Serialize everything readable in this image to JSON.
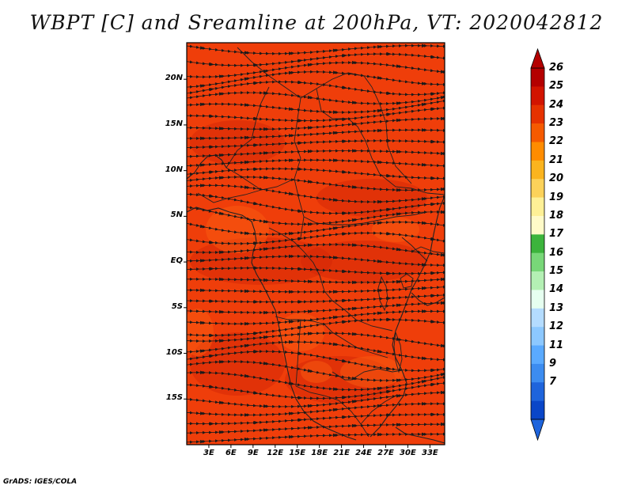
{
  "title": "WBPT [C] and Sreamline at 200hPa, VT: 2020042812",
  "footer": "GrADS: IGES/COLA",
  "map": {
    "lon_range": [
      0,
      35
    ],
    "lat_range": [
      -20,
      24
    ],
    "lat_ticks": [
      {
        "value": 20,
        "label": "20N"
      },
      {
        "value": 15,
        "label": "15N"
      },
      {
        "value": 10,
        "label": "10N"
      },
      {
        "value": 5,
        "label": "5N"
      },
      {
        "value": 0,
        "label": "EQ"
      },
      {
        "value": -5,
        "label": "5S"
      },
      {
        "value": -10,
        "label": "10S"
      },
      {
        "value": -15,
        "label": "15S"
      }
    ],
    "lon_ticks": [
      {
        "value": 3,
        "label": "3E"
      },
      {
        "value": 6,
        "label": "6E"
      },
      {
        "value": 9,
        "label": "9E"
      },
      {
        "value": 12,
        "label": "12E"
      },
      {
        "value": 15,
        "label": "15E"
      },
      {
        "value": 18,
        "label": "18E"
      },
      {
        "value": 21,
        "label": "21E"
      },
      {
        "value": 24,
        "label": "24E"
      },
      {
        "value": 27,
        "label": "27E"
      },
      {
        "value": 30,
        "label": "30E"
      },
      {
        "value": 33,
        "label": "33E"
      }
    ],
    "field_colors": {
      "base": "#ef3e0a",
      "dark": "#d62808",
      "light": "#f75a10",
      "coast": "#222222",
      "streamline": "#1a1a1a"
    }
  },
  "colorbar": {
    "labels": [
      "26",
      "25",
      "24",
      "23",
      "22",
      "21",
      "20",
      "19",
      "18",
      "17",
      "16",
      "15",
      "14",
      "13",
      "12",
      "11",
      "9",
      "7"
    ],
    "colors": [
      "#b40000",
      "#d21400",
      "#e63200",
      "#f55a00",
      "#ff8c00",
      "#fbb41e",
      "#fcd25a",
      "#fef096",
      "#fffac8",
      "#3cb43c",
      "#78d778",
      "#b4f0b4",
      "#e6fff0",
      "#b4dcff",
      "#8cc8ff",
      "#5aaaff",
      "#3c8cf0",
      "#1e64dc",
      "#0a46c8"
    ],
    "top_arrow_color": "#b40000",
    "bottom_arrow_color": "#1e64dc"
  }
}
